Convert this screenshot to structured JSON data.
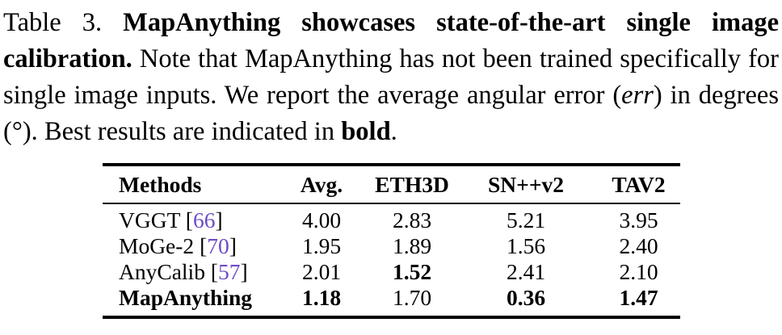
{
  "caption": {
    "label": "Table 3. ",
    "bold_lead": "MapAnything showcases state-of-the-art single image calibration.",
    "text_1": " Note that MapAnything has not been trained specifically for single image inputs. We report the average angular error (",
    "err_term": "err",
    "text_2": ") in degrees (°). Best results are indicated in ",
    "bold_word": "bold",
    "text_3": "."
  },
  "table": {
    "columns": [
      "Methods",
      "Avg.",
      "ETH3D",
      "SN++v2",
      "TAV2"
    ],
    "brackets": {
      "open": "[",
      "close": "]"
    },
    "citation_color": "#6e4cc4",
    "rows": [
      {
        "method": "VGGT",
        "cite": "66",
        "avg": "4.00",
        "eth3d": "2.83",
        "snv2": "5.21",
        "tav2": "3.95"
      },
      {
        "method": "MoGe-2",
        "cite": "70",
        "avg": "1.95",
        "eth3d": "1.89",
        "snv2": "1.56",
        "tav2": "2.40"
      },
      {
        "method": "AnyCalib",
        "cite": "57",
        "avg": "2.01",
        "eth3d": "1.52",
        "snv2": "2.41",
        "tav2": "2.10"
      },
      {
        "method": "MapAnything",
        "avg": "1.18",
        "eth3d": "1.70",
        "snv2": "0.36",
        "tav2": "1.47"
      }
    ]
  }
}
